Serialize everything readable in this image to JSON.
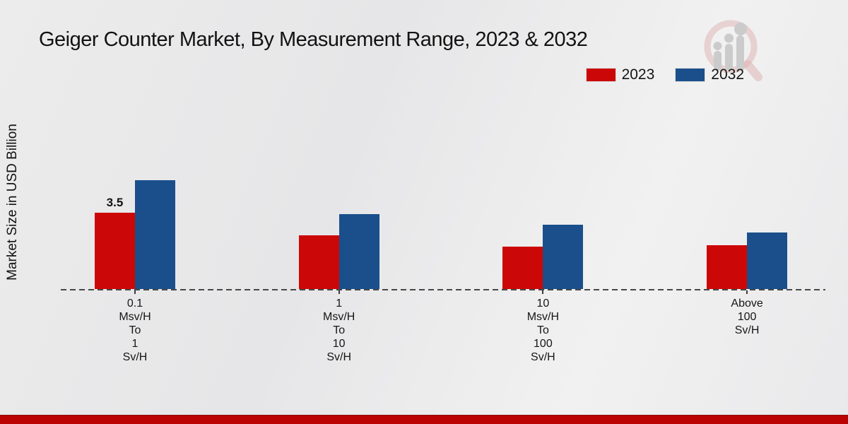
{
  "chart_data": {
    "type": "bar",
    "title": "Geiger Counter Market, By Measurement Range, 2023 & 2032",
    "ylabel": "Market Size in USD Billion",
    "xlabel": "",
    "categories": [
      [
        "0.1",
        "Msv/H",
        "To",
        "1",
        "Sv/H"
      ],
      [
        "1",
        "Msv/H",
        "To",
        "10",
        "Sv/H"
      ],
      [
        "10",
        "Msv/H",
        "To",
        "100",
        "Sv/H"
      ],
      [
        "Above",
        "100",
        "Sv/H"
      ]
    ],
    "series": [
      {
        "name": "2023",
        "color": "#cc0707",
        "values": [
          3.5,
          2.45,
          1.95,
          2.0
        ]
      },
      {
        "name": "2032",
        "color": "#1a4f8b",
        "values": [
          5.0,
          3.45,
          2.95,
          2.6
        ]
      }
    ],
    "bar_labels": [
      {
        "series": "2023",
        "category_index": 0,
        "text": "3.5"
      }
    ],
    "ylim": [
      0,
      5.5
    ],
    "grid": false,
    "legend_position": "top-right",
    "baseline_style": "dashed"
  },
  "colors": {
    "red_2023": "#cc0707",
    "blue_2032": "#1a4f8b",
    "footer_strip": "#ba0404",
    "background": "#eaeaec",
    "baseline": "#474747"
  },
  "icons": {
    "watermark": "magnifier-bar-chart-logo"
  }
}
